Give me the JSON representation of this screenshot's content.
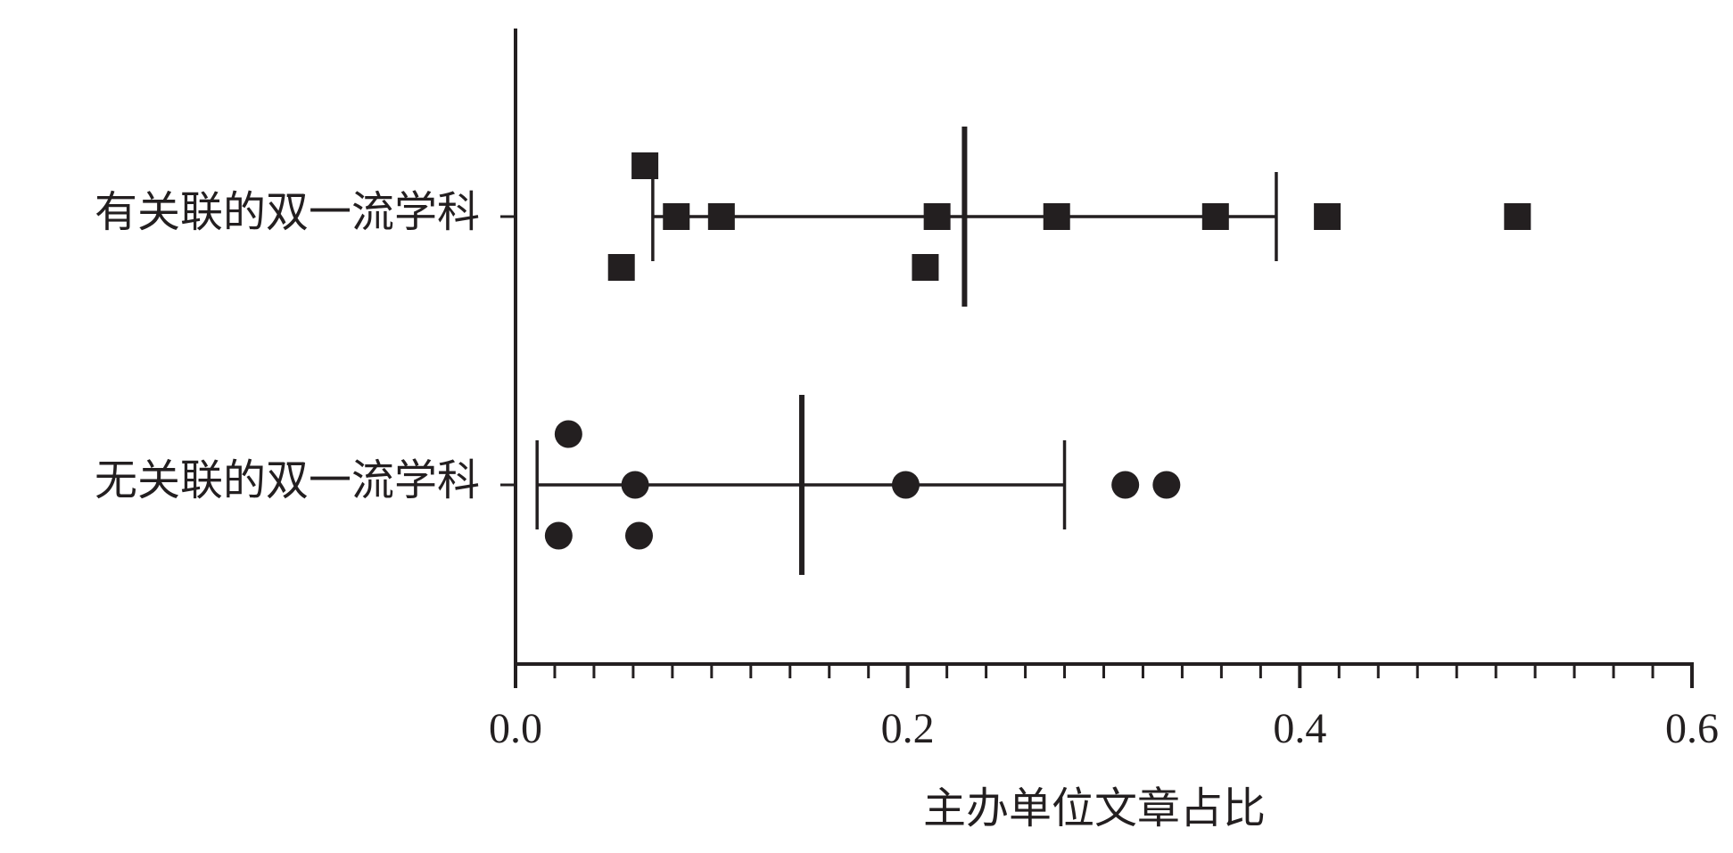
{
  "chart_data": {
    "type": "dot_plot",
    "x_label": "主办单位文章占比",
    "xlim": [
      0,
      0.6
    ],
    "xticks": [
      {
        "value": 0,
        "label": "0.0"
      },
      0.2,
      0.4,
      0.6
    ],
    "xminorticks": [
      0.02,
      0.04,
      0.06,
      0.08,
      0.1,
      0.12,
      0.14,
      0.16,
      0.18,
      0.22,
      0.24,
      0.26,
      0.28,
      0.3,
      0.32,
      0.34,
      0.36,
      0.38,
      0.42,
      0.44,
      0.46,
      0.48,
      0.5,
      0.52,
      0.54,
      0.56,
      0.58
    ],
    "color": "#231f20",
    "groups": [
      {
        "label": "有关联的双一流学科",
        "marker": "square",
        "values": [
          0.066,
          0.082,
          0.105,
          0.215,
          0.276,
          0.357,
          0.414,
          0.511,
          0.054,
          0.209
        ],
        "mean": 0.229,
        "error_low": 0.07,
        "error_high": 0.388
      },
      {
        "label": "无关联的双一流学科",
        "marker": "circle",
        "values": [
          0.027,
          0.061,
          0.199,
          0.311,
          0.332,
          0.022,
          0.063
        ],
        "mean": 0.146,
        "error_low": 0.011,
        "error_high": 0.28
      }
    ]
  }
}
